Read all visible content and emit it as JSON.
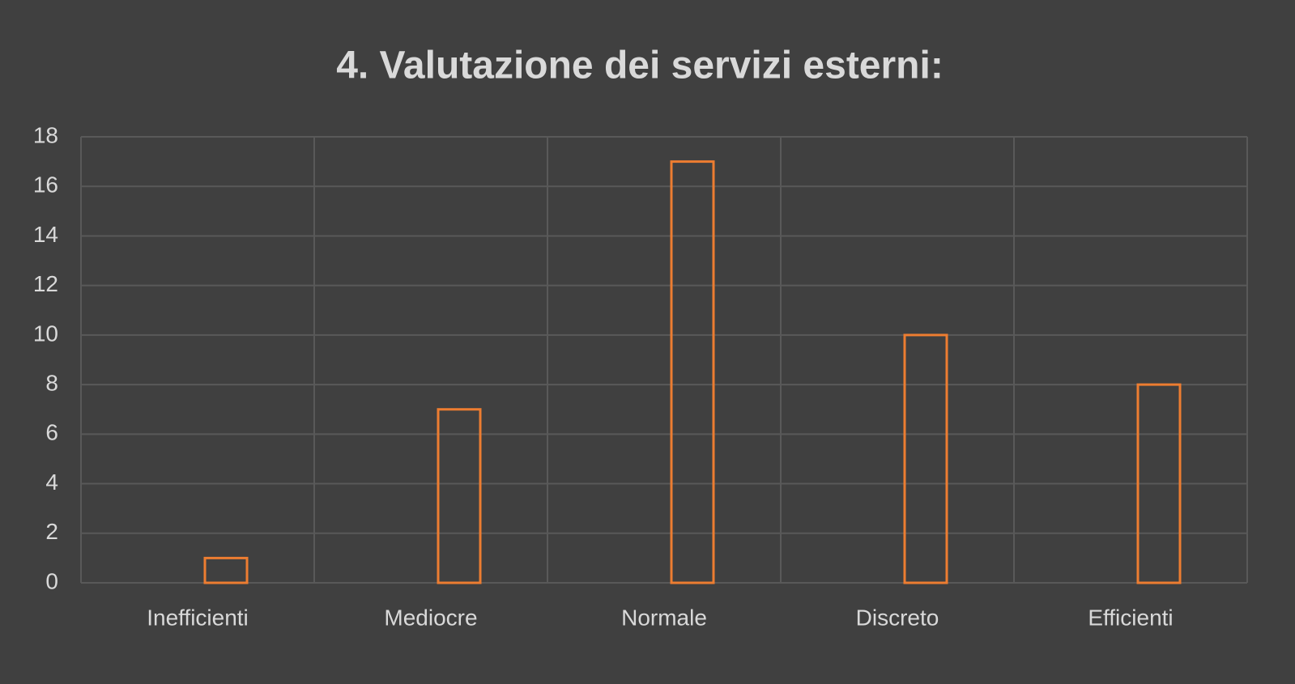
{
  "chart_data": {
    "type": "bar",
    "title": "4. Valutazione dei servizi esterni:",
    "categories": [
      "Inefficienti",
      "Mediocre",
      "Normale",
      "Discreto",
      "Efficienti"
    ],
    "values": [
      1,
      7,
      17,
      10,
      8
    ],
    "color": "#ed7d31",
    "ylim": [
      0,
      18
    ],
    "yticks": [
      0,
      2,
      4,
      6,
      8,
      10,
      12,
      14,
      16,
      18
    ],
    "grid": true
  }
}
